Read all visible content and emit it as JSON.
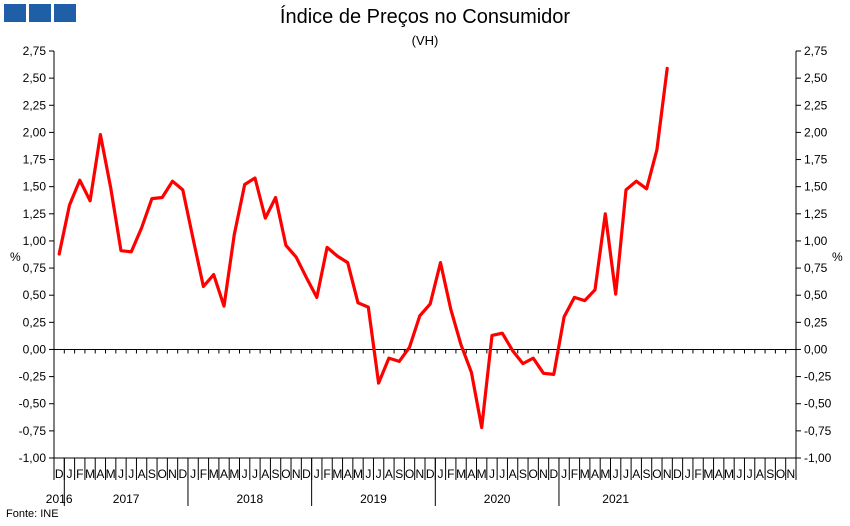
{
  "logo": {
    "blocks": 3,
    "color": "#1f5fa8"
  },
  "title": "Índice de Preços no Consumidor",
  "subtitle": "(VH)",
  "source": "Fonte: INE",
  "chart_data": {
    "type": "line",
    "title": "Índice de Preços no Consumidor",
    "subtitle": "(VH)",
    "ylabel": "%",
    "ylabel_right": "%",
    "ylim": [
      -1.0,
      2.75
    ],
    "y_ticks": [
      "2,75",
      "2,50",
      "2,25",
      "2,00",
      "1,75",
      "1,50",
      "1,25",
      "1,00",
      "0,75",
      "0,50",
      "0,25",
      "0,00",
      "-0,25",
      "-0,50",
      "-0,75",
      "-1,00"
    ],
    "y_tick_values": [
      2.75,
      2.5,
      2.25,
      2.0,
      1.75,
      1.5,
      1.25,
      1.0,
      0.75,
      0.5,
      0.25,
      0.0,
      -0.25,
      -0.5,
      -0.75,
      -1.0
    ],
    "grid": false,
    "line_color": "#ff0000",
    "month_letters": [
      "D",
      "J",
      "F",
      "M",
      "A",
      "M",
      "J",
      "J",
      "A",
      "S",
      "O",
      "N",
      "D",
      "J",
      "F",
      "M",
      "A",
      "M",
      "J",
      "J",
      "A",
      "S",
      "O",
      "N",
      "D",
      "J",
      "F",
      "M",
      "A",
      "M",
      "J",
      "J",
      "A",
      "S",
      "O",
      "N",
      "D",
      "J",
      "F",
      "M",
      "A",
      "M",
      "J",
      "J",
      "A",
      "S",
      "O",
      "N",
      "D",
      "J",
      "F",
      "M",
      "A",
      "M",
      "J",
      "J",
      "A",
      "S",
      "O",
      "N",
      "D",
      "J",
      "F",
      "M",
      "A",
      "M",
      "J",
      "J",
      "A",
      "S",
      "O",
      "N"
    ],
    "years": [
      {
        "label": "2016",
        "start": 0,
        "end": 1
      },
      {
        "label": "2017",
        "start": 1,
        "end": 13
      },
      {
        "label": "2018",
        "start": 13,
        "end": 25
      },
      {
        "label": "2019",
        "start": 25,
        "end": 37
      },
      {
        "label": "2020",
        "start": 37,
        "end": 49
      },
      {
        "label": "2021",
        "start": 49,
        "end": 60
      }
    ],
    "year_boundaries": [
      1,
      13,
      25,
      37,
      49
    ],
    "series": [
      {
        "name": "",
        "x": [
          "2016-12",
          "2017-01",
          "2017-02",
          "2017-03",
          "2017-04",
          "2017-05",
          "2017-06",
          "2017-07",
          "2017-08",
          "2017-09",
          "2017-10",
          "2017-11",
          "2017-12",
          "2018-01",
          "2018-02",
          "2018-03",
          "2018-04",
          "2018-05",
          "2018-06",
          "2018-07",
          "2018-08",
          "2018-09",
          "2018-10",
          "2018-11",
          "2018-12",
          "2019-01",
          "2019-02",
          "2019-03",
          "2019-04",
          "2019-05",
          "2019-06",
          "2019-07",
          "2019-08",
          "2019-09",
          "2019-10",
          "2019-11",
          "2019-12",
          "2020-01",
          "2020-02",
          "2020-03",
          "2020-04",
          "2020-05",
          "2020-06",
          "2020-07",
          "2020-08",
          "2020-09",
          "2020-10",
          "2020-11",
          "2020-12",
          "2021-01",
          "2021-02",
          "2021-03",
          "2021-04",
          "2021-05",
          "2021-06",
          "2021-07",
          "2021-08",
          "2021-09",
          "2021-10",
          "2021-11"
        ],
        "values": [
          0.88,
          1.33,
          1.56,
          1.37,
          1.98,
          1.49,
          0.91,
          0.9,
          1.12,
          1.39,
          1.4,
          1.55,
          1.47,
          1.02,
          0.58,
          0.69,
          0.4,
          1.06,
          1.52,
          1.58,
          1.21,
          1.4,
          0.96,
          0.85,
          0.66,
          0.48,
          0.94,
          0.86,
          0.8,
          0.43,
          0.39,
          -0.31,
          -0.08,
          -0.11,
          0.02,
          0.31,
          0.42,
          0.8,
          0.37,
          0.04,
          -0.21,
          -0.72,
          0.13,
          0.15,
          -0.01,
          -0.13,
          -0.08,
          -0.22,
          -0.23,
          0.3,
          0.48,
          0.45,
          0.55,
          1.25,
          0.51,
          1.47,
          1.55,
          1.48,
          1.84,
          2.59
        ]
      }
    ]
  }
}
